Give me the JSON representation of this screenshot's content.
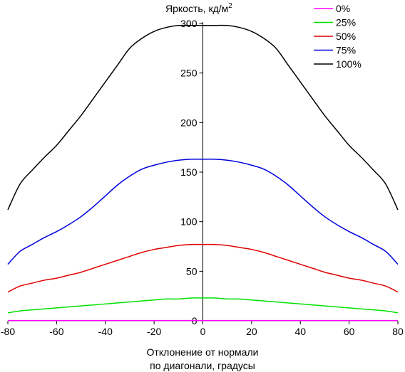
{
  "chart_data": {
    "type": "line",
    "ylabel": "Яркость, кд/м",
    "ylabel_sup": "2",
    "xlabel_line1": "Отклонение от нормали",
    "xlabel_line2": "по диагонали, градусы",
    "xlim": [
      -80,
      80
    ],
    "ylim": [
      0,
      300
    ],
    "x_ticks": [
      -80,
      -60,
      -40,
      -20,
      0,
      20,
      40,
      60,
      80
    ],
    "y_ticks": [
      0,
      50,
      100,
      150,
      200,
      250,
      300
    ],
    "y_tick_labels": [
      "0",
      "50",
      "100",
      "150",
      "200",
      "250",
      "300"
    ],
    "x_tick_labels": [
      "-80",
      "-60",
      "-40",
      "-20",
      "0",
      "20",
      "40",
      "60",
      "80"
    ],
    "grid": false,
    "legend_position": "top-right",
    "x": [
      -80,
      -75,
      -70,
      -65,
      -60,
      -55,
      -50,
      -45,
      -40,
      -35,
      -30,
      -25,
      -20,
      -15,
      -10,
      -5,
      0,
      5,
      10,
      15,
      20,
      25,
      30,
      35,
      40,
      45,
      50,
      55,
      60,
      65,
      70,
      75,
      80
    ],
    "series": [
      {
        "name": "0%",
        "color": "#ff00ff",
        "values": [
          0.3,
          0.3,
          0.3,
          0.3,
          0.3,
          0.3,
          0.3,
          0.3,
          0.3,
          0.3,
          0.3,
          0.3,
          0.3,
          0.3,
          0.3,
          0.3,
          0.3,
          0.3,
          0.3,
          0.3,
          0.3,
          0.3,
          0.3,
          0.3,
          0.3,
          0.3,
          0.3,
          0.3,
          0.3,
          0.3,
          0.3,
          0.3,
          0.3
        ]
      },
      {
        "name": "25%",
        "color": "#00e000",
        "values": [
          8,
          10,
          11,
          12,
          13,
          14,
          15,
          16,
          17,
          18,
          19,
          20,
          21,
          22,
          22,
          23,
          23,
          23,
          22,
          22,
          21,
          20,
          19,
          18,
          17,
          16,
          15,
          14,
          13,
          12,
          11,
          10,
          8
        ]
      },
      {
        "name": "50%",
        "color": "#e00000",
        "values": [
          29,
          35,
          38,
          41,
          43,
          46,
          49,
          53,
          57,
          61,
          65,
          69,
          72,
          74,
          76,
          77,
          77,
          77,
          76,
          74,
          72,
          69,
          65,
          61,
          57,
          53,
          49,
          46,
          43,
          41,
          38,
          35,
          29
        ]
      },
      {
        "name": "75%",
        "color": "#0000dd",
        "values": [
          57,
          70,
          77,
          84,
          90,
          97,
          105,
          115,
          126,
          137,
          146,
          153,
          157,
          160,
          162,
          163,
          163,
          163,
          162,
          160,
          157,
          153,
          146,
          137,
          126,
          115,
          105,
          97,
          90,
          84,
          77,
          70,
          57
        ]
      },
      {
        "name": "100%",
        "color": "#000000",
        "values": [
          112,
          138,
          152,
          165,
          177,
          192,
          207,
          224,
          241,
          258,
          275,
          285,
          292,
          296,
          298,
          298,
          298,
          298,
          298,
          296,
          292,
          285,
          275,
          258,
          241,
          224,
          207,
          192,
          177,
          165,
          152,
          138,
          112
        ]
      }
    ]
  }
}
